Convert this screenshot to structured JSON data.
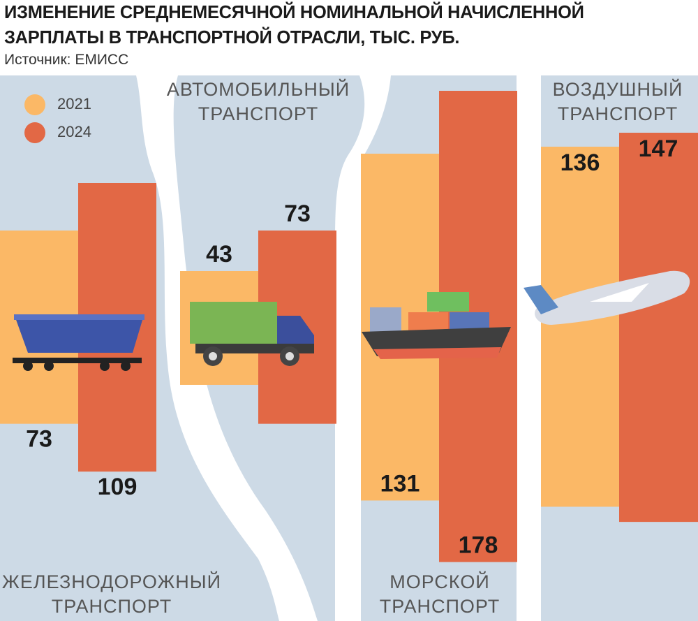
{
  "title": "ИЗМЕНЕНИЕ СРЕДНЕМЕСЯЧНОЙ НОМИНАЛЬНОЙ НАЧИСЛЕННОЙ ЗАРПЛАТЫ В ТРАНСПОРТНОЙ ОТРАСЛИ, ТЫС. РУБ.",
  "source": "Источник: ЕМИСС",
  "chart_data": {
    "type": "bar",
    "categories": [
      "ЖЕЛЕЗНОДОРОЖНЫЙ ТРАНСПОРТ",
      "АВТОМОБИЛЬНЫЙ ТРАНСПОРТ",
      "МОРСКОЙ ТРАНСПОРТ",
      "ВОЗДУШНЫЙ ТРАНСПОРТ"
    ],
    "series": [
      {
        "name": "2021",
        "color": "#fbb866",
        "values": [
          73,
          43,
          131,
          136
        ]
      },
      {
        "name": "2024",
        "color": "#e26845",
        "values": [
          109,
          73,
          178,
          147
        ]
      }
    ]
  }
}
